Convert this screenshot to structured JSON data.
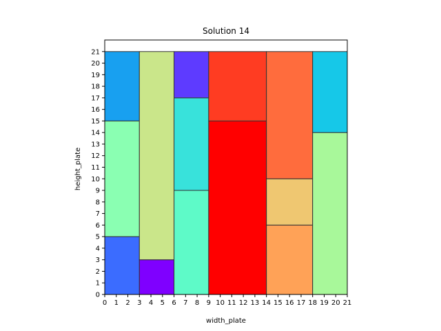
{
  "chart_data": {
    "type": "bar",
    "title": "Solution 14",
    "xlabel": "width_plate",
    "ylabel": "height_plate",
    "xlim": [
      0,
      21
    ],
    "ylim": [
      0,
      22
    ],
    "xticks": [
      0,
      1,
      2,
      3,
      4,
      5,
      6,
      7,
      8,
      9,
      10,
      11,
      12,
      13,
      14,
      15,
      16,
      17,
      18,
      19,
      20,
      21
    ],
    "yticks": [
      0,
      1,
      2,
      3,
      4,
      5,
      6,
      7,
      8,
      9,
      10,
      11,
      12,
      13,
      14,
      15,
      16,
      17,
      18,
      19,
      20,
      21
    ],
    "grid": false,
    "rectangles": [
      {
        "x": 0,
        "y": 0,
        "w": 3,
        "h": 5,
        "color": "#3b6cff"
      },
      {
        "x": 0,
        "y": 5,
        "w": 3,
        "h": 10,
        "color": "#8affb2"
      },
      {
        "x": 0,
        "y": 15,
        "w": 3,
        "h": 6,
        "color": "#18a0f0"
      },
      {
        "x": 3,
        "y": 0,
        "w": 3,
        "h": 3,
        "color": "#7f00ff"
      },
      {
        "x": 3,
        "y": 3,
        "w": 3,
        "h": 18,
        "color": "#cae68a"
      },
      {
        "x": 6,
        "y": 0,
        "w": 3,
        "h": 9,
        "color": "#5efac8"
      },
      {
        "x": 6,
        "y": 9,
        "w": 3,
        "h": 8,
        "color": "#38e2db"
      },
      {
        "x": 6,
        "y": 17,
        "w": 3,
        "h": 4,
        "color": "#5e3bff"
      },
      {
        "x": 9,
        "y": 0,
        "w": 5,
        "h": 15,
        "color": "#ff0000"
      },
      {
        "x": 9,
        "y": 15,
        "w": 5,
        "h": 6,
        "color": "#ff3c22"
      },
      {
        "x": 14,
        "y": 0,
        "w": 4,
        "h": 6,
        "color": "#ffa257"
      },
      {
        "x": 14,
        "y": 6,
        "w": 4,
        "h": 4,
        "color": "#efc771"
      },
      {
        "x": 14,
        "y": 10,
        "w": 4,
        "h": 11,
        "color": "#ff6c3d"
      },
      {
        "x": 18,
        "y": 0,
        "w": 3,
        "h": 14,
        "color": "#a8f89a"
      },
      {
        "x": 18,
        "y": 14,
        "w": 3,
        "h": 7,
        "color": "#16c8e8"
      }
    ]
  }
}
